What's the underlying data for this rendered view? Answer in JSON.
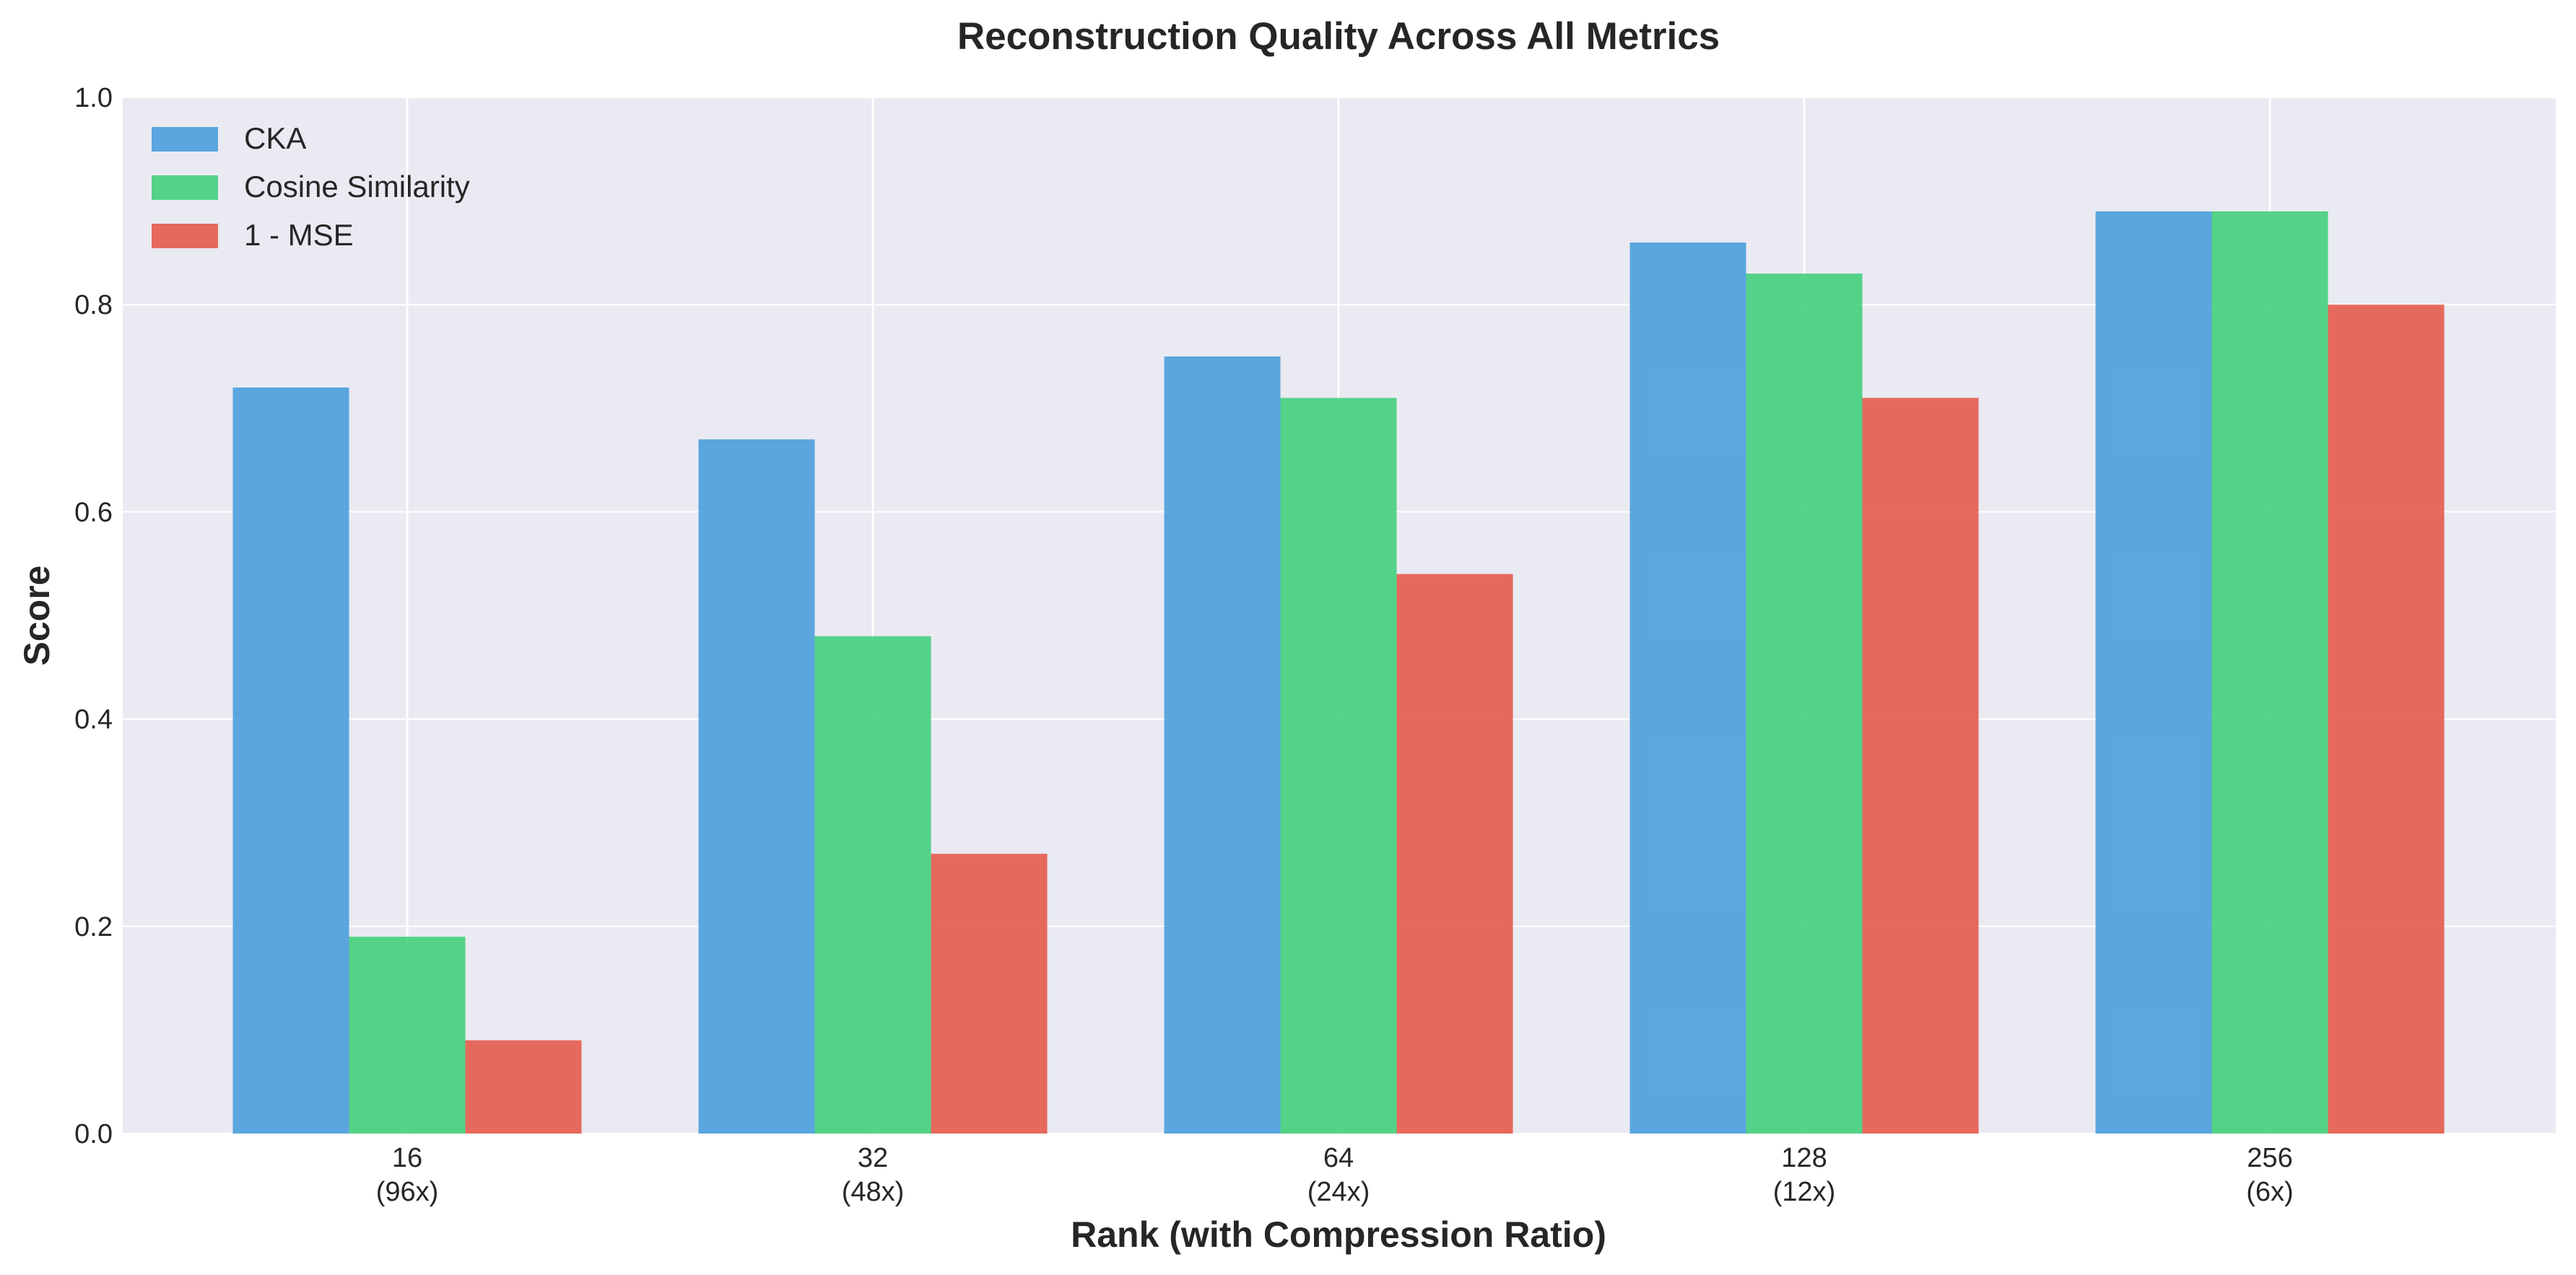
{
  "chart_data": {
    "type": "bar",
    "title": "Reconstruction Quality Across All Metrics",
    "xlabel": "Rank (with Compression Ratio)",
    "ylabel": "Score",
    "ylim": [
      0,
      1.0
    ],
    "yticks": [
      "0.0",
      "0.2",
      "0.4",
      "0.6",
      "0.8",
      "1.0"
    ],
    "categories": [
      {
        "rank": "16",
        "ratio": "(96x)"
      },
      {
        "rank": "32",
        "ratio": "(48x)"
      },
      {
        "rank": "64",
        "ratio": "(24x)"
      },
      {
        "rank": "128",
        "ratio": "(12x)"
      },
      {
        "rank": "256",
        "ratio": "(6x)"
      }
    ],
    "series": [
      {
        "name": "CKA",
        "color": "#4b9fdc",
        "values": [
          0.72,
          0.67,
          0.75,
          0.86,
          0.89
        ]
      },
      {
        "name": "Cosine Similarity",
        "color": "#44cf7c",
        "values": [
          0.19,
          0.48,
          0.71,
          0.83,
          0.89
        ]
      },
      {
        "name": "1 - MSE",
        "color": "#e65b4d",
        "values": [
          0.09,
          0.27,
          0.54,
          0.71,
          0.8
        ]
      }
    ],
    "grid": true,
    "legend_position": "top-left",
    "background": "#eaeaf2"
  }
}
